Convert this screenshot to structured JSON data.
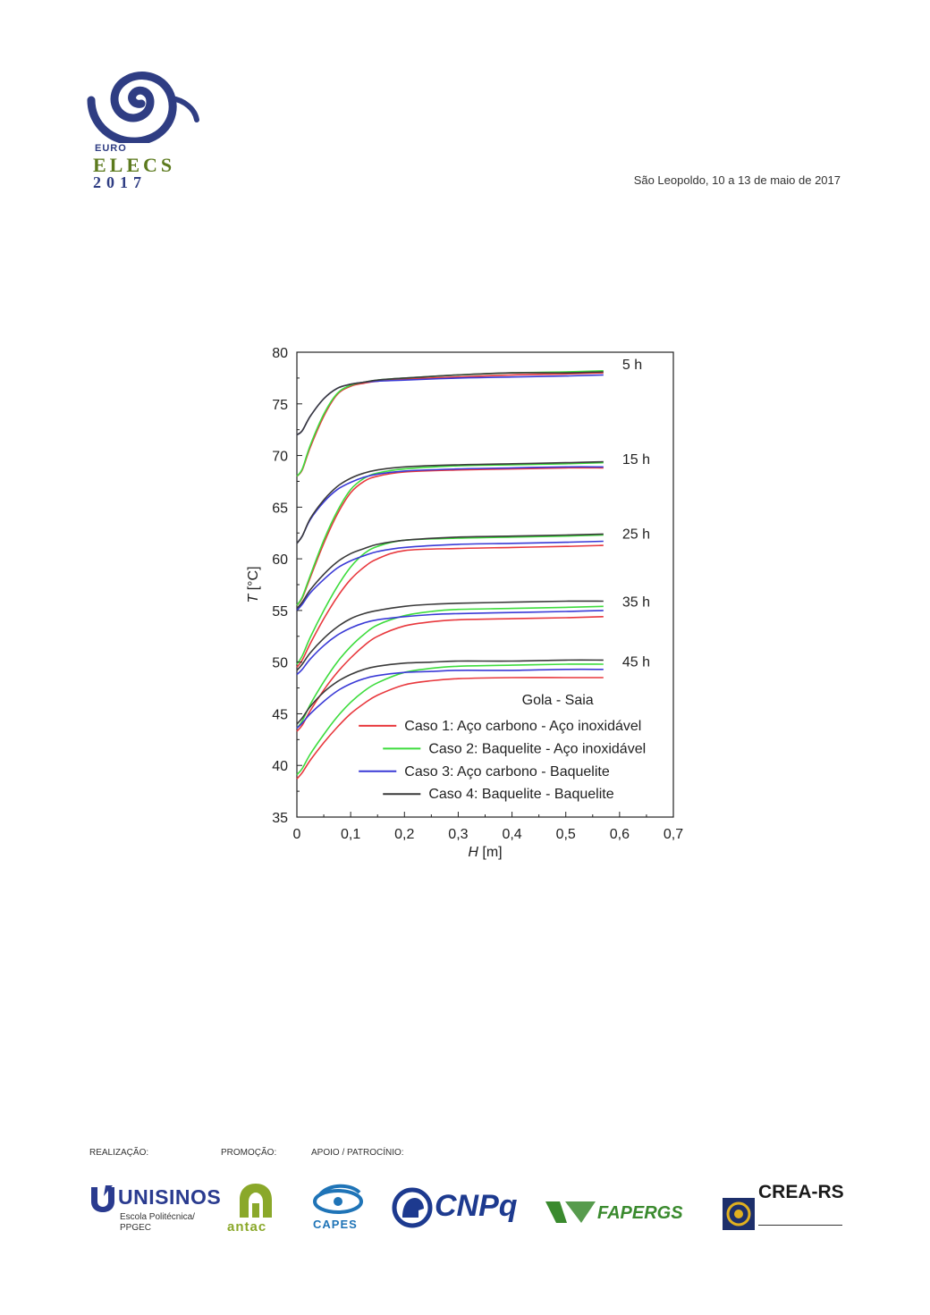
{
  "header": {
    "logo": {
      "line1": "EURO",
      "line2": "ELECS",
      "line3": "2017"
    },
    "date_text": "São Leopoldo, 10 a 13 de maio de 2017"
  },
  "chart_data": {
    "type": "line",
    "xlabel_var": "H",
    "xlabel_unit": "[m]",
    "ylabel_var": "T",
    "ylabel_unit": "[°C]",
    "xlim": [
      0,
      0.7
    ],
    "ylim": [
      35,
      80
    ],
    "xticks": [
      0,
      0.1,
      0.2,
      0.3,
      0.4,
      0.5,
      0.6,
      0.7
    ],
    "xtick_labels": [
      "0",
      "0,1",
      "0,2",
      "0,3",
      "0,4",
      "0,5",
      "0,6",
      "0,7"
    ],
    "yticks": [
      35,
      40,
      45,
      50,
      55,
      60,
      65,
      70,
      75,
      80
    ],
    "ytick_labels": [
      "35",
      "40",
      "45",
      "50",
      "55",
      "60",
      "65",
      "70",
      "75",
      "80"
    ],
    "grid": false,
    "legend_title": "Gola - Saia",
    "legend_position": "bottom-right",
    "legend": [
      {
        "label": "Caso 1: Aço carbono - Aço inoxidável",
        "color": "#e8383d"
      },
      {
        "label": "Caso 2: Baquelite - Aço inoxidável",
        "color": "#3ddc3d"
      },
      {
        "label": "Caso 3: Aço carbono - Baquelite",
        "color": "#3a3ad6"
      },
      {
        "label": "Caso 4: Baquelite - Baquelite",
        "color": "#3a3a3a"
      }
    ],
    "time_labels": [
      "5 h",
      "15 h",
      "25 h",
      "35 h",
      "45 h"
    ],
    "series": [
      {
        "case": "Caso 1",
        "time": "5 h",
        "color": "#e8383d",
        "x": [
          0,
          0.01,
          0.025,
          0.05,
          0.075,
          0.1,
          0.125,
          0.15,
          0.2,
          0.3,
          0.4,
          0.5,
          0.57
        ],
        "y": [
          68,
          68.6,
          70.8,
          73.8,
          75.9,
          76.7,
          77.0,
          77.2,
          77.4,
          77.6,
          77.8,
          77.9,
          78.0
        ]
      },
      {
        "case": "Caso 2",
        "time": "5 h",
        "color": "#3ddc3d",
        "x": [
          0,
          0.01,
          0.025,
          0.05,
          0.075,
          0.1,
          0.125,
          0.15,
          0.2,
          0.3,
          0.4,
          0.5,
          0.57
        ],
        "y": [
          68,
          68.7,
          71.0,
          74.0,
          76.0,
          76.8,
          77.1,
          77.3,
          77.5,
          77.8,
          78.0,
          78.1,
          78.2
        ]
      },
      {
        "case": "Caso 3",
        "time": "5 h",
        "color": "#3a3ad6",
        "x": [
          0,
          0.01,
          0.025,
          0.05,
          0.075,
          0.1,
          0.125,
          0.15,
          0.2,
          0.3,
          0.4,
          0.5,
          0.57
        ],
        "y": [
          72,
          72.4,
          73.8,
          75.5,
          76.5,
          76.9,
          77.1,
          77.2,
          77.3,
          77.5,
          77.6,
          77.7,
          77.8
        ]
      },
      {
        "case": "Caso 4",
        "time": "5 h",
        "color": "#3a3a3a",
        "x": [
          0,
          0.01,
          0.025,
          0.05,
          0.075,
          0.1,
          0.125,
          0.15,
          0.2,
          0.3,
          0.4,
          0.5,
          0.57
        ],
        "y": [
          72,
          72.4,
          73.8,
          75.5,
          76.5,
          76.9,
          77.1,
          77.3,
          77.5,
          77.8,
          78.0,
          78.0,
          78.1
        ]
      },
      {
        "case": "Caso 1",
        "time": "15 h",
        "color": "#e8383d",
        "x": [
          0,
          0.01,
          0.025,
          0.05,
          0.075,
          0.1,
          0.125,
          0.15,
          0.2,
          0.3,
          0.4,
          0.5,
          0.57
        ],
        "y": [
          55.5,
          56.2,
          58.2,
          61.5,
          64.3,
          66.4,
          67.5,
          68.0,
          68.4,
          68.6,
          68.7,
          68.8,
          68.8
        ]
      },
      {
        "case": "Caso 2",
        "time": "15 h",
        "color": "#3ddc3d",
        "x": [
          0,
          0.01,
          0.025,
          0.05,
          0.075,
          0.1,
          0.125,
          0.15,
          0.2,
          0.3,
          0.4,
          0.5,
          0.57
        ],
        "y": [
          55.5,
          56.3,
          58.4,
          61.8,
          64.6,
          66.7,
          67.8,
          68.3,
          68.7,
          69.0,
          69.1,
          69.2,
          69.3
        ]
      },
      {
        "case": "Caso 3",
        "time": "15 h",
        "color": "#3a3ad6",
        "x": [
          0,
          0.01,
          0.025,
          0.05,
          0.075,
          0.1,
          0.125,
          0.15,
          0.2,
          0.3,
          0.4,
          0.5,
          0.57
        ],
        "y": [
          61.5,
          62.2,
          63.8,
          65.5,
          66.7,
          67.4,
          67.9,
          68.2,
          68.5,
          68.7,
          68.8,
          68.9,
          68.9
        ]
      },
      {
        "case": "Caso 4",
        "time": "15 h",
        "color": "#3a3a3a",
        "x": [
          0,
          0.01,
          0.025,
          0.05,
          0.075,
          0.1,
          0.125,
          0.15,
          0.2,
          0.3,
          0.4,
          0.5,
          0.57
        ],
        "y": [
          61.5,
          62.2,
          63.9,
          65.7,
          67.0,
          67.8,
          68.3,
          68.6,
          68.9,
          69.1,
          69.2,
          69.3,
          69.4
        ]
      },
      {
        "case": "Caso 1",
        "time": "25 h",
        "color": "#e8383d",
        "x": [
          0,
          0.01,
          0.025,
          0.05,
          0.075,
          0.1,
          0.125,
          0.15,
          0.2,
          0.3,
          0.4,
          0.5,
          0.57
        ],
        "y": [
          49.5,
          50.2,
          51.8,
          54.2,
          56.3,
          58.0,
          59.2,
          60.0,
          60.8,
          61.0,
          61.1,
          61.2,
          61.3
        ]
      },
      {
        "case": "Caso 2",
        "time": "25 h",
        "color": "#3ddc3d",
        "x": [
          0,
          0.01,
          0.025,
          0.05,
          0.075,
          0.1,
          0.125,
          0.15,
          0.2,
          0.3,
          0.4,
          0.5,
          0.57
        ],
        "y": [
          49.8,
          50.6,
          52.4,
          55.0,
          57.3,
          59.2,
          60.5,
          61.2,
          61.8,
          62.0,
          62.1,
          62.2,
          62.3
        ]
      },
      {
        "case": "Caso 3",
        "time": "25 h",
        "color": "#3a3ad6",
        "x": [
          0,
          0.01,
          0.025,
          0.05,
          0.075,
          0.1,
          0.125,
          0.15,
          0.2,
          0.3,
          0.4,
          0.5,
          0.57
        ],
        "y": [
          55.0,
          55.6,
          56.7,
          58.0,
          59.1,
          59.8,
          60.3,
          60.7,
          61.1,
          61.4,
          61.5,
          61.6,
          61.7
        ]
      },
      {
        "case": "Caso 4",
        "time": "25 h",
        "color": "#3a3a3a",
        "x": [
          0,
          0.01,
          0.025,
          0.05,
          0.075,
          0.1,
          0.125,
          0.15,
          0.2,
          0.3,
          0.4,
          0.5,
          0.57
        ],
        "y": [
          55.2,
          55.8,
          57.0,
          58.5,
          59.7,
          60.5,
          61.0,
          61.4,
          61.8,
          62.1,
          62.2,
          62.3,
          62.4
        ]
      },
      {
        "case": "Caso 1",
        "time": "35 h",
        "color": "#e8383d",
        "x": [
          0,
          0.01,
          0.025,
          0.05,
          0.075,
          0.1,
          0.125,
          0.15,
          0.2,
          0.25,
          0.3,
          0.4,
          0.5,
          0.57
        ],
        "y": [
          43.3,
          43.9,
          45.3,
          47.3,
          49.0,
          50.4,
          51.6,
          52.5,
          53.5,
          53.9,
          54.1,
          54.2,
          54.3,
          54.4
        ]
      },
      {
        "case": "Caso 2",
        "time": "35 h",
        "color": "#3ddc3d",
        "x": [
          0,
          0.01,
          0.025,
          0.05,
          0.075,
          0.1,
          0.125,
          0.15,
          0.2,
          0.25,
          0.3,
          0.4,
          0.5,
          0.57
        ],
        "y": [
          43.6,
          44.3,
          45.9,
          48.1,
          50.0,
          51.5,
          52.7,
          53.6,
          54.5,
          54.9,
          55.1,
          55.2,
          55.3,
          55.4
        ]
      },
      {
        "case": "Caso 3",
        "time": "35 h",
        "color": "#3a3ad6",
        "x": [
          0,
          0.01,
          0.025,
          0.05,
          0.075,
          0.1,
          0.125,
          0.15,
          0.2,
          0.25,
          0.3,
          0.4,
          0.5,
          0.57
        ],
        "y": [
          48.8,
          49.3,
          50.3,
          51.6,
          52.6,
          53.3,
          53.8,
          54.1,
          54.4,
          54.6,
          54.7,
          54.8,
          54.9,
          55.0
        ]
      },
      {
        "case": "Caso 4",
        "time": "35 h",
        "color": "#3a3a3a",
        "x": [
          0,
          0.01,
          0.025,
          0.05,
          0.075,
          0.1,
          0.125,
          0.15,
          0.2,
          0.25,
          0.3,
          0.4,
          0.5,
          0.57
        ],
        "y": [
          49.2,
          49.8,
          50.9,
          52.3,
          53.4,
          54.2,
          54.7,
          55.0,
          55.4,
          55.6,
          55.7,
          55.8,
          55.9,
          55.9
        ]
      },
      {
        "case": "Caso 1",
        "time": "45 h",
        "color": "#e8383d",
        "x": [
          0,
          0.01,
          0.025,
          0.05,
          0.075,
          0.1,
          0.125,
          0.15,
          0.2,
          0.25,
          0.3,
          0.4,
          0.5,
          0.57
        ],
        "y": [
          38.7,
          39.3,
          40.5,
          42.2,
          43.7,
          45.0,
          46.0,
          46.8,
          47.8,
          48.2,
          48.4,
          48.5,
          48.5,
          48.5
        ]
      },
      {
        "case": "Caso 2",
        "time": "45 h",
        "color": "#3ddc3d",
        "x": [
          0,
          0.01,
          0.025,
          0.05,
          0.075,
          0.1,
          0.125,
          0.15,
          0.2,
          0.25,
          0.3,
          0.4,
          0.5,
          0.57
        ],
        "y": [
          39.1,
          39.7,
          41.1,
          43.0,
          44.7,
          46.1,
          47.2,
          48.0,
          49.0,
          49.4,
          49.6,
          49.7,
          49.8,
          49.8
        ]
      },
      {
        "case": "Caso 3",
        "time": "45 h",
        "color": "#3a3ad6",
        "x": [
          0,
          0.01,
          0.025,
          0.05,
          0.075,
          0.1,
          0.125,
          0.15,
          0.2,
          0.25,
          0.3,
          0.4,
          0.5,
          0.57
        ],
        "y": [
          43.6,
          44.1,
          45.0,
          46.2,
          47.2,
          47.9,
          48.4,
          48.7,
          49.0,
          49.1,
          49.2,
          49.2,
          49.3,
          49.3
        ]
      },
      {
        "case": "Caso 4",
        "time": "45 h",
        "color": "#3a3a3a",
        "x": [
          0,
          0.01,
          0.025,
          0.05,
          0.075,
          0.1,
          0.125,
          0.15,
          0.2,
          0.25,
          0.3,
          0.4,
          0.5,
          0.57
        ],
        "y": [
          44.0,
          44.6,
          45.7,
          47.1,
          48.1,
          48.8,
          49.3,
          49.6,
          49.9,
          50.0,
          50.1,
          50.1,
          50.2,
          50.2
        ]
      }
    ]
  },
  "footer": {
    "labels": {
      "realizacao": "REALIZAÇÃO:",
      "promocao": "PROMOÇÃO:",
      "apoio": "APOIO / PATROCÍNIO:"
    },
    "unisinos": {
      "name": "UNISINOS",
      "sub1": "Escola Politécnica/",
      "sub2": "PPGEC"
    },
    "antac": "antac",
    "capes": "CAPES",
    "cnpq": "CNPq",
    "fapergs": "FAPERGS",
    "crea": {
      "name": "CREA-RS"
    }
  }
}
